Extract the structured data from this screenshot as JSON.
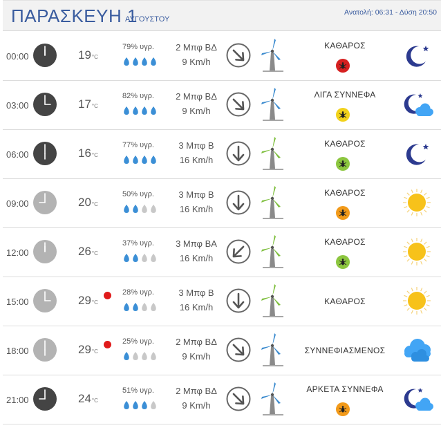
{
  "header": {
    "day": "ΠΑΡΑΣΚΕΥΗ 1",
    "month": "ΑΥΓΟΥΣΤΟΥ",
    "sun_times": "Ανατολή: 06:31  - Δύση 20:50"
  },
  "unit_celsius": "°C",
  "colors": {
    "title_blue": "#3a5c9f",
    "clock_dark": "#444444",
    "clock_light": "#b3b3b3",
    "drop_blue": "#3b8fd6",
    "drop_grey": "#c8c8c8",
    "turbine_blue": "#3d8ccf",
    "turbine_green": "#7fbf3f",
    "bug_red": "#d62020",
    "bug_yellow": "#f2d21b",
    "bug_green": "#8cc63f",
    "bug_orange": "#f29a1a",
    "moon": "#2c3a8f",
    "sun": "#f7c21a",
    "cloud": "#42a5f5"
  },
  "rows": [
    {
      "time": "00:00",
      "clock": "dark",
      "temp": "19",
      "hot": false,
      "humidity": "79% υγρ.",
      "drops": 4,
      "wind_bf": "2 Μπφ ΒΔ",
      "wind_kmh": "9 Km/h",
      "arrow": "nw",
      "turbine": "blue",
      "sky": "ΚΑΘΑΡΟΣ",
      "bug": "red",
      "icon": "moon"
    },
    {
      "time": "03:00",
      "clock": "dark",
      "temp": "17",
      "hot": false,
      "humidity": "82% υγρ.",
      "drops": 4,
      "wind_bf": "2 Μπφ ΒΔ",
      "wind_kmh": "9 Km/h",
      "arrow": "nw",
      "turbine": "blue",
      "sky": "ΛΙΓΑ ΣΥΝΝΕΦΑ",
      "bug": "yellow",
      "icon": "moon-cloud"
    },
    {
      "time": "06:00",
      "clock": "dark",
      "temp": "16",
      "hot": false,
      "humidity": "77% υγρ.",
      "drops": 4,
      "wind_bf": "3 Μπφ Β",
      "wind_kmh": "16 Km/h",
      "arrow": "n",
      "turbine": "green",
      "sky": "ΚΑΘΑΡΟΣ",
      "bug": "green",
      "icon": "moon"
    },
    {
      "time": "09:00",
      "clock": "light",
      "temp": "20",
      "hot": false,
      "humidity": "50% υγρ.",
      "drops": 2,
      "wind_bf": "3 Μπφ Β",
      "wind_kmh": "16 Km/h",
      "arrow": "n",
      "turbine": "green",
      "sky": "ΚΑΘΑΡΟΣ",
      "bug": "orange",
      "icon": "sun"
    },
    {
      "time": "12:00",
      "clock": "light",
      "temp": "26",
      "hot": false,
      "humidity": "37% υγρ.",
      "drops": 2,
      "wind_bf": "3 Μπφ ΒΑ",
      "wind_kmh": "16 Km/h",
      "arrow": "ne",
      "turbine": "green",
      "sky": "ΚΑΘΑΡΟΣ",
      "bug": "green",
      "icon": "sun"
    },
    {
      "time": "15:00",
      "clock": "light",
      "temp": "29",
      "hot": true,
      "humidity": "28% υγρ.",
      "drops": 2,
      "wind_bf": "3 Μπφ Β",
      "wind_kmh": "16 Km/h",
      "arrow": "n",
      "turbine": "green",
      "sky": "ΚΑΘΑΡΟΣ",
      "bug": "none",
      "icon": "sun"
    },
    {
      "time": "18:00",
      "clock": "light",
      "temp": "29",
      "hot": true,
      "humidity": "25% υγρ.",
      "drops": 1,
      "wind_bf": "2 Μπφ ΒΔ",
      "wind_kmh": "9 Km/h",
      "arrow": "nw",
      "turbine": "blue",
      "sky": "ΣΥΝΝΕΦΙΑΣΜΕΝΟΣ",
      "bug": "none",
      "icon": "clouds"
    },
    {
      "time": "21:00",
      "clock": "dark",
      "temp": "24",
      "hot": false,
      "humidity": "51% υγρ.",
      "drops": 3,
      "wind_bf": "2 Μπφ ΒΔ",
      "wind_kmh": "9 Km/h",
      "arrow": "nw",
      "turbine": "blue",
      "sky": "ΑΡΚΕΤΑ ΣΥΝΝΕΦΑ",
      "bug": "orange",
      "icon": "moon-cloud"
    }
  ]
}
